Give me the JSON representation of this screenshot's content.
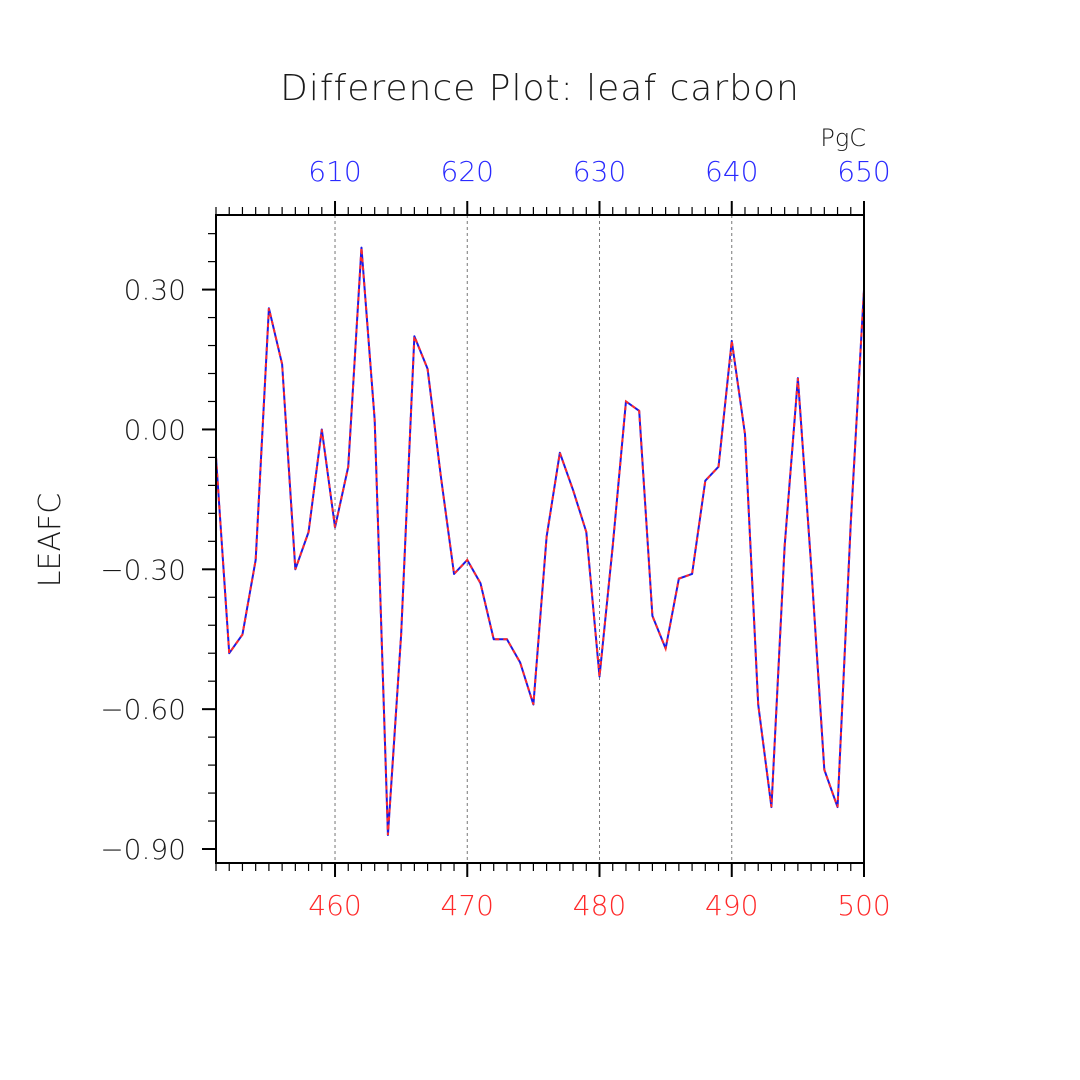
{
  "chart_data": {
    "type": "line",
    "title": "Difference Plot: leaf carbon",
    "ylabel": "LEAFC",
    "top_axis_units": "PgC",
    "xlim": [
      451,
      500
    ],
    "ylim": [
      -0.93,
      0.46
    ],
    "top_xlim": [
      601,
      650
    ],
    "bottom_ticks": {
      "values": [
        460,
        470,
        480,
        490,
        500
      ],
      "labels": [
        "460",
        "470",
        "480",
        "490",
        "500"
      ],
      "color": "#ff2a2a"
    },
    "top_ticks": {
      "values": [
        610,
        620,
        630,
        640,
        650
      ],
      "labels": [
        "610",
        "620",
        "630",
        "640",
        "650"
      ],
      "color": "#2a2aff"
    },
    "y_ticks": {
      "values": [
        0.3,
        0.0,
        -0.3,
        -0.6,
        -0.9
      ],
      "labels": [
        "0.30",
        "0.00",
        "−0.30",
        "−0.60",
        "−0.90"
      ]
    },
    "grid": "vertical dashed at major x ticks",
    "x": [
      451,
      452,
      453,
      454,
      455,
      456,
      457,
      458,
      459,
      460,
      461,
      462,
      463,
      464,
      465,
      466,
      467,
      468,
      469,
      470,
      471,
      472,
      473,
      474,
      475,
      476,
      477,
      478,
      479,
      480,
      481,
      482,
      483,
      484,
      485,
      486,
      487,
      488,
      489,
      490,
      491,
      492,
      493,
      494,
      495,
      496,
      497,
      498,
      499,
      500
    ],
    "series": [
      {
        "line_color": "#1a1ae6",
        "dash_color": "#ff2a2a",
        "values": [
          -0.06,
          -0.48,
          -0.44,
          -0.28,
          0.26,
          0.14,
          -0.3,
          -0.22,
          0.0,
          -0.21,
          -0.08,
          0.39,
          0.02,
          -0.87,
          -0.44,
          0.2,
          0.13,
          -0.1,
          -0.31,
          -0.28,
          -0.33,
          -0.45,
          -0.45,
          -0.5,
          -0.59,
          -0.23,
          -0.05,
          -0.13,
          -0.22,
          -0.53,
          -0.25,
          0.06,
          0.04,
          -0.4,
          -0.47,
          -0.32,
          -0.31,
          -0.11,
          -0.08,
          0.19,
          -0.01,
          -0.59,
          -0.81,
          -0.25,
          0.11,
          -0.29,
          -0.73,
          -0.81,
          -0.2,
          0.3
        ]
      }
    ]
  }
}
